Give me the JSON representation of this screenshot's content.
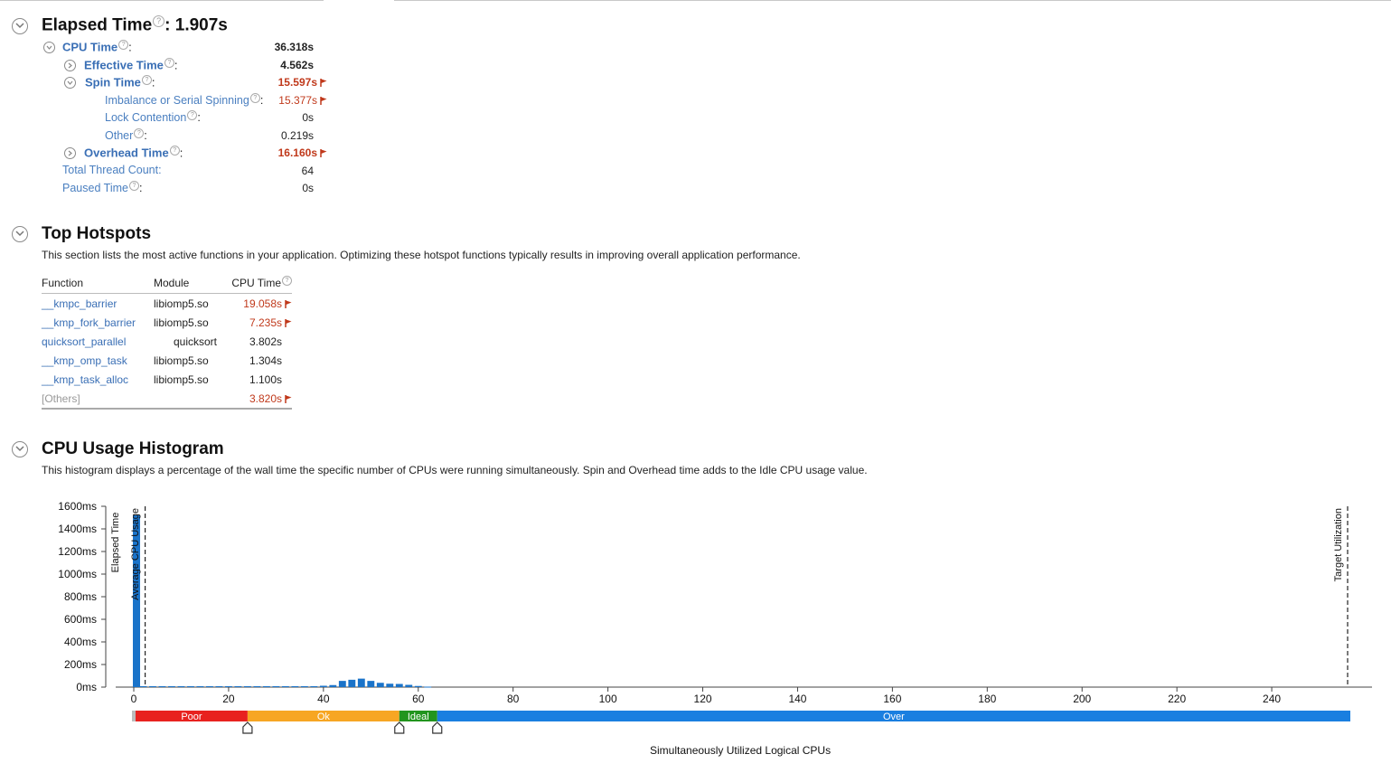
{
  "elapsed": {
    "title": "Elapsed Time",
    "colon": ":",
    "value": "1.907s",
    "help": "?",
    "metrics": {
      "cpu_time": {
        "label": "CPU Time",
        "value": "36.318s"
      },
      "effective_time": {
        "label": "Effective Time",
        "value": "4.562s"
      },
      "spin_time": {
        "label": "Spin Time",
        "value": "15.597s"
      },
      "imbalance": {
        "label": "Imbalance or Serial Spinning",
        "value": "15.377s"
      },
      "lock_contention": {
        "label": "Lock Contention",
        "value": "0s"
      },
      "other": {
        "label": "Other",
        "value": "0.219s"
      },
      "overhead_time": {
        "label": "Overhead Time",
        "value": "16.160s"
      },
      "thread_count": {
        "label": "Total Thread Count:",
        "value": "64"
      },
      "paused_time": {
        "label": "Paused Time",
        "value": "0s"
      }
    }
  },
  "hotspots": {
    "title": "Top Hotspots",
    "description": "This section lists the most active functions in your application. Optimizing these hotspot functions typically results in improving overall application performance.",
    "columns": {
      "function": "Function",
      "module": "Module",
      "cpu_time": "CPU Time"
    },
    "rows": [
      {
        "function": "__kmpc_barrier",
        "module": "libiomp5.so",
        "cpu_time": "19.058s"
      },
      {
        "function": "__kmp_fork_barrier",
        "module": "libiomp5.so",
        "cpu_time": "7.235s"
      },
      {
        "function": "quicksort_parallel",
        "module": "quicksort",
        "cpu_time": "3.802s"
      },
      {
        "function": "__kmp_omp_task",
        "module": "libiomp5.so",
        "cpu_time": "1.304s"
      },
      {
        "function": "__kmp_task_alloc",
        "module": "libiomp5.so",
        "cpu_time": "1.100s"
      },
      {
        "function": "[Others]",
        "module": "",
        "cpu_time": "3.820s"
      }
    ]
  },
  "histogram": {
    "title": "CPU Usage Histogram",
    "description": "This histogram displays a percentage of the wall time the specific number of CPUs were running simultaneously. Spin and Overhead time adds to the Idle CPU usage value.",
    "x_axis_label": "Simultaneously Utilized Logical CPUs"
  },
  "colors": {
    "link": "#3a6fb5",
    "warning": "#c0391b",
    "bar": "#1a73c9",
    "poor": "#e8221f",
    "ok": "#f7a623",
    "ideal": "#22951e",
    "over": "#1a7fe0"
  },
  "chart_data": {
    "type": "bar",
    "ylabel": "Elapsed Time",
    "xlabel": "Simultaneously Utilized Logical CPUs",
    "y_unit": "ms",
    "ylim": [
      0,
      1600
    ],
    "xlim": [
      0,
      256
    ],
    "y_ticks": [
      "0ms",
      "200ms",
      "400ms",
      "600ms",
      "800ms",
      "1000ms",
      "1200ms",
      "1400ms",
      "1600ms"
    ],
    "x_ticks": [
      "0",
      "20",
      "40",
      "60",
      "80",
      "100",
      "120",
      "140",
      "160",
      "180",
      "200",
      "220",
      "240"
    ],
    "x": [
      0,
      2,
      4,
      6,
      8,
      10,
      12,
      14,
      16,
      18,
      20,
      22,
      24,
      26,
      28,
      30,
      32,
      34,
      36,
      38,
      40,
      42,
      44,
      46,
      48,
      50,
      52,
      54,
      56,
      58,
      60,
      62
    ],
    "values": [
      1520,
      8,
      8,
      8,
      8,
      8,
      8,
      8,
      8,
      8,
      8,
      8,
      8,
      8,
      8,
      8,
      8,
      8,
      8,
      8,
      12,
      18,
      55,
      65,
      75,
      55,
      38,
      30,
      28,
      20,
      10,
      4
    ],
    "markers": [
      {
        "label": "Average CPU Usage",
        "x": 2.4
      },
      {
        "label": "Target Utilization",
        "x": 256
      }
    ],
    "ranges": [
      {
        "label": "Poor",
        "from": 0,
        "to": 24
      },
      {
        "label": "Ok",
        "from": 24,
        "to": 56
      },
      {
        "label": "Ideal",
        "from": 56,
        "to": 64
      },
      {
        "label": "Over",
        "from": 64,
        "to": 256
      }
    ],
    "range_sliders": [
      24,
      56,
      64
    ]
  }
}
